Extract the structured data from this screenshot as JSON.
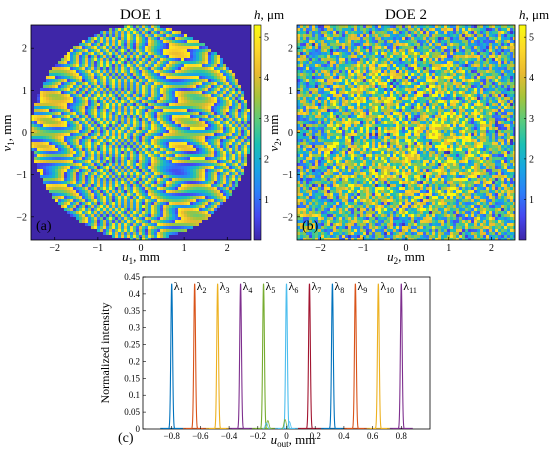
{
  "chart_data": [
    {
      "type": "heatmap",
      "title": "DOE 1",
      "panel_label": "(a)",
      "xlabel_main": "u",
      "xlabel_sub": "1",
      "xlabel_unit": ", mm",
      "ylabel_main": "v",
      "ylabel_sub": "1",
      "ylabel_unit": ", mm",
      "xlim": [
        -2.55,
        2.55
      ],
      "ylim": [
        -2.55,
        2.55
      ],
      "xticks": [
        -2,
        -1,
        0,
        1,
        2
      ],
      "yticks": [
        -2,
        -1,
        0,
        1,
        2
      ],
      "colorbar": {
        "label_main": "h",
        "label_unit": ", μm",
        "range": [
          0,
          5.3
        ],
        "ticks": [
          1,
          2,
          3,
          4,
          5
        ]
      },
      "aperture": "circular, radius 2.55 mm"
    },
    {
      "type": "heatmap",
      "title": "DOE 2",
      "panel_label": "(b)",
      "xlabel_main": "u",
      "xlabel_sub": "2",
      "xlabel_unit": ", mm",
      "ylabel_main": "v",
      "ylabel_sub": "2",
      "ylabel_unit": ", mm",
      "xlim": [
        -2.55,
        2.55
      ],
      "ylim": [
        -2.55,
        2.55
      ],
      "xticks": [
        -2,
        -1,
        0,
        1,
        2
      ],
      "yticks": [
        -2,
        -1,
        0,
        1,
        2
      ],
      "colorbar": {
        "label_main": "h",
        "label_unit": ", μm",
        "range": [
          0,
          5.3
        ],
        "ticks": [
          1,
          2,
          3,
          4,
          5
        ]
      }
    },
    {
      "type": "line",
      "panel_label": "(c)",
      "xlabel_main": "u",
      "xlabel_sub": "out",
      "xlabel_unit": ", mm",
      "ylabel": "Normalized intensity",
      "xlim": [
        -1.0,
        1.0
      ],
      "ylim": [
        0,
        0.45
      ],
      "xticks": [
        -0.8,
        -0.6,
        -0.4,
        -0.2,
        0,
        0.2,
        0.4,
        0.6,
        0.8
      ],
      "yticks": [
        0,
        0.05,
        0.1,
        0.15,
        0.2,
        0.25,
        0.3,
        0.35,
        0.4,
        0.45
      ],
      "series": [
        {
          "name": "λ1",
          "sub": "1",
          "x": -0.8,
          "peak": 0.43,
          "color": "#0072BD"
        },
        {
          "name": "λ2",
          "sub": "2",
          "x": -0.64,
          "peak": 0.43,
          "color": "#D95319"
        },
        {
          "name": "λ3",
          "sub": "3",
          "x": -0.48,
          "peak": 0.43,
          "color": "#EDB120"
        },
        {
          "name": "λ4",
          "sub": "4",
          "x": -0.32,
          "peak": 0.43,
          "color": "#7E2F8E"
        },
        {
          "name": "λ5",
          "sub": "5",
          "x": -0.16,
          "peak": 0.43,
          "color": "#77AC30"
        },
        {
          "name": "λ6",
          "sub": "6",
          "x": 0.0,
          "peak": 0.43,
          "color": "#4DBEEE"
        },
        {
          "name": "λ7",
          "sub": "7",
          "x": 0.16,
          "peak": 0.43,
          "color": "#A2142F"
        },
        {
          "name": "λ8",
          "sub": "8",
          "x": 0.32,
          "peak": 0.43,
          "color": "#0072BD"
        },
        {
          "name": "λ9",
          "sub": "9",
          "x": 0.48,
          "peak": 0.43,
          "color": "#D95319"
        },
        {
          "name": "λ10",
          "sub": "10",
          "x": 0.64,
          "peak": 0.43,
          "color": "#EDB120"
        },
        {
          "name": "λ11",
          "sub": "11",
          "x": 0.8,
          "peak": 0.43,
          "color": "#7E2F8E"
        }
      ]
    }
  ],
  "colors": {
    "parula_stops": [
      "#3E26A8",
      "#4648F0",
      "#2C7FF9",
      "#18A6E3",
      "#1AC0B4",
      "#5ACB7C",
      "#A6C43A",
      "#EABA30",
      "#FDD92A",
      "#F9FB0E"
    ]
  }
}
